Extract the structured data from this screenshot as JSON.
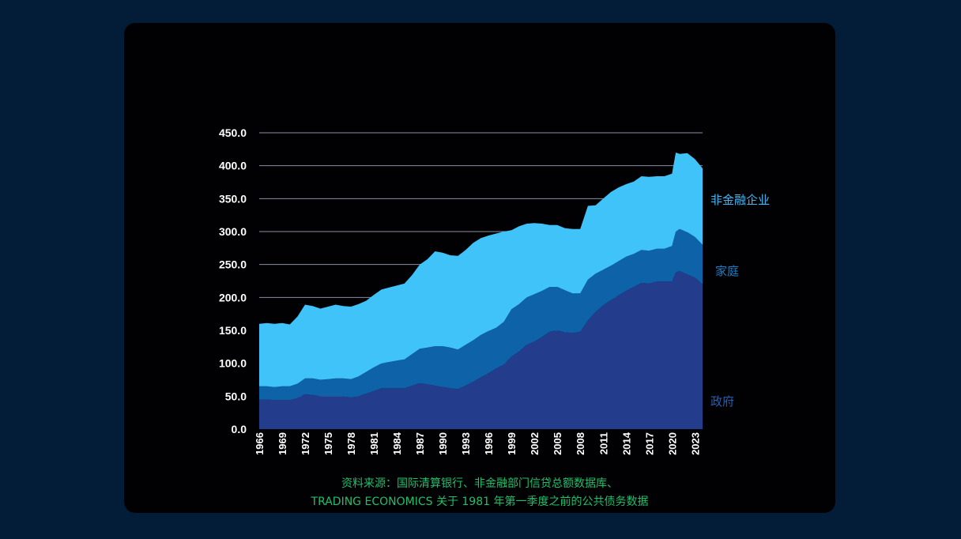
{
  "chart_data": {
    "type": "area",
    "stacked": true,
    "y_ticks": [
      "0.0",
      "50.0",
      "100.0",
      "150.0",
      "200.0",
      "250.0",
      "300.0",
      "350.0",
      "400.0",
      "450.0"
    ],
    "ylim": [
      0,
      450
    ],
    "x_ticks": [
      "1966",
      "1969",
      "1972",
      "1975",
      "1978",
      "1981",
      "1984",
      "1987",
      "1990",
      "1993",
      "1996",
      "1999",
      "2002",
      "2005",
      "2008",
      "2011",
      "2014",
      "2017",
      "2020",
      "2023"
    ],
    "xlim": [
      1966,
      2024
    ],
    "grid": true,
    "x": [
      1966,
      1967,
      1968,
      1969,
      1970,
      1971,
      1972,
      1973,
      1974,
      1975,
      1976,
      1977,
      1978,
      1979,
      1980,
      1981,
      1982,
      1983,
      1984,
      1985,
      1986,
      1987,
      1988,
      1989,
      1990,
      1991,
      1992,
      1993,
      1994,
      1995,
      1996,
      1997,
      1998,
      1999,
      2000,
      2001,
      2002,
      2003,
      2004,
      2005,
      2006,
      2007,
      2008,
      2009,
      2010,
      2011,
      2012,
      2013,
      2014,
      2015,
      2016,
      2017,
      2018,
      2019,
      2020,
      2020.5,
      2021,
      2022,
      2023,
      2024
    ],
    "series": [
      {
        "name": "政府",
        "color": "#233c8c",
        "values": [
          45,
          45,
          44,
          44,
          44,
          47,
          53,
          52,
          50,
          50,
          50,
          50,
          48,
          50,
          54,
          58,
          62,
          62,
          62,
          62,
          66,
          70,
          68,
          66,
          64,
          62,
          61,
          66,
          72,
          79,
          85,
          92,
          98,
          110,
          118,
          128,
          133,
          140,
          148,
          150,
          147,
          146,
          148,
          165,
          178,
          188,
          196,
          203,
          210,
          216,
          222,
          221,
          224,
          224,
          224,
          238,
          240,
          235,
          230,
          220
        ]
      },
      {
        "name": "家庭",
        "color": "#0e62a8",
        "values": [
          20,
          20,
          20,
          21,
          21,
          22,
          24,
          25,
          25,
          26,
          27,
          27,
          28,
          30,
          33,
          36,
          38,
          40,
          42,
          44,
          48,
          52,
          56,
          60,
          62,
          62,
          60,
          62,
          63,
          64,
          64,
          62,
          65,
          72,
          72,
          72,
          72,
          70,
          68,
          66,
          64,
          60,
          58,
          62,
          58,
          54,
          52,
          52,
          52,
          50,
          50,
          50,
          50,
          50,
          54,
          62,
          64,
          64,
          62,
          60
        ]
      },
      {
        "name": "非金融企业",
        "color": "#3fc3f9",
        "values": [
          95,
          96,
          96,
          96,
          94,
          102,
          112,
          110,
          108,
          110,
          112,
          110,
          110,
          110,
          108,
          110,
          112,
          113,
          114,
          115,
          120,
          128,
          134,
          144,
          142,
          140,
          142,
          144,
          148,
          147,
          145,
          143,
          137,
          120,
          118,
          112,
          108,
          102,
          94,
          94,
          94,
          98,
          98,
          112,
          104,
          108,
          112,
          112,
          110,
          110,
          112,
          112,
          110,
          110,
          110,
          120,
          114,
          120,
          118,
          116
        ]
      }
    ]
  },
  "labels": {
    "corporate": "非金融企业",
    "household": "家庭",
    "government": "政府"
  },
  "source": {
    "line1": "资料来源：国际清算银行、非金融部门信贷总额数据库、",
    "line2": "TRADING ECONOMICS 关于 1981 年第一季度之前的公共债务数据"
  },
  "colors": {
    "page_background": "#031d38",
    "card_background": "#010104",
    "gridline": "#8a8fa0",
    "source_text": "#20c06a",
    "corporate_label": "#3fb9f5",
    "household_label": "#1e7ec4",
    "government_label": "#2560b0"
  }
}
